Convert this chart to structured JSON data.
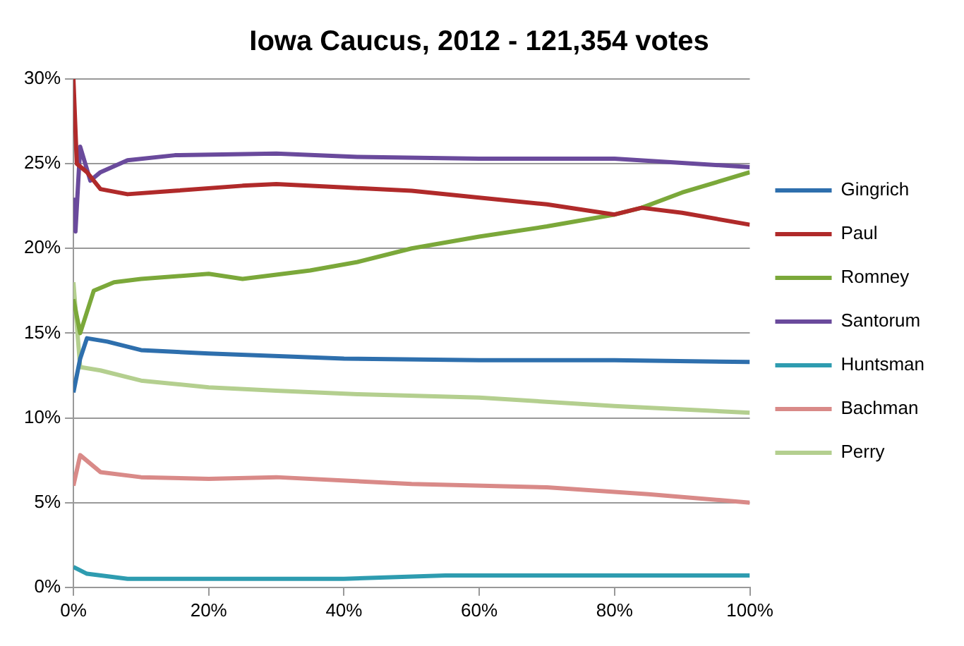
{
  "chart_data": {
    "type": "line",
    "title": "Iowa Caucus, 2012 - 121,354 votes",
    "xlim": [
      0,
      100
    ],
    "xticks": [
      {
        "value": 0,
        "label": "0%"
      },
      {
        "value": 20,
        "label": "20%"
      },
      {
        "value": 40,
        "label": "40%"
      },
      {
        "value": 60,
        "label": "60%"
      },
      {
        "value": 80,
        "label": "80%"
      },
      {
        "value": 100,
        "label": "100%"
      }
    ],
    "ylim": [
      0,
      30
    ],
    "yticks": [
      {
        "value": 0,
        "label": "0%"
      },
      {
        "value": 5,
        "label": "5%"
      },
      {
        "value": 10,
        "label": "10%"
      },
      {
        "value": 15,
        "label": "15%"
      },
      {
        "value": 20,
        "label": "20%"
      },
      {
        "value": 25,
        "label": "25%"
      },
      {
        "value": 30,
        "label": "30%"
      }
    ],
    "grid": "y",
    "legend": "right",
    "marker": "none",
    "series": [
      {
        "name": "Gingrich",
        "color": "#2e6fad",
        "x": [
          0,
          1,
          2,
          5,
          10,
          20,
          40,
          60,
          80,
          100
        ],
        "values": [
          11.5,
          13.5,
          14.7,
          14.5,
          14,
          13.8,
          13.5,
          13.4,
          13.4,
          13.3
        ]
      },
      {
        "name": "Paul",
        "color": "#b02a2a",
        "x": [
          0,
          0.5,
          2,
          4,
          8,
          15,
          25,
          30,
          40,
          50,
          60,
          70,
          80,
          84,
          90,
          100
        ],
        "values": [
          30,
          25,
          24.5,
          23.5,
          23.2,
          23.4,
          23.7,
          23.8,
          23.6,
          23.4,
          23,
          22.6,
          22,
          22.4,
          22.1,
          21.4
        ]
      },
      {
        "name": "Romney",
        "color": "#7ba83a",
        "x": [
          0,
          1,
          3,
          6,
          10,
          20,
          25,
          35,
          42,
          50,
          60,
          70,
          80,
          84,
          90,
          100
        ],
        "values": [
          17,
          15,
          17.5,
          18,
          18.2,
          18.5,
          18.2,
          18.7,
          19.2,
          20,
          20.7,
          21.3,
          22,
          22.4,
          23.3,
          24.5
        ]
      },
      {
        "name": "Santorum",
        "color": "#6a4a9c",
        "x": [
          0,
          0.3,
          1,
          2.5,
          4,
          8,
          15,
          30,
          42,
          60,
          80,
          100
        ],
        "values": [
          23,
          21,
          26,
          24,
          24.5,
          25.2,
          25.5,
          25.6,
          25.4,
          25.3,
          25.3,
          24.8
        ]
      },
      {
        "name": "Huntsman",
        "color": "#2e9cb0",
        "x": [
          0,
          2,
          8,
          40,
          55,
          100
        ],
        "values": [
          1.2,
          0.8,
          0.5,
          0.5,
          0.7,
          0.7
        ]
      },
      {
        "name": "Bachman",
        "color": "#d98a88",
        "x": [
          0,
          1,
          4,
          10,
          20,
          30,
          50,
          70,
          85,
          100
        ],
        "values": [
          6,
          7.8,
          6.8,
          6.5,
          6.4,
          6.5,
          6.1,
          5.9,
          5.5,
          5
        ]
      },
      {
        "name": "Perry",
        "color": "#b4cf8f",
        "x": [
          0,
          1,
          4,
          10,
          20,
          30,
          42,
          60,
          80,
          100
        ],
        "values": [
          18,
          13,
          12.8,
          12.2,
          11.8,
          11.6,
          11.4,
          11.2,
          10.7,
          10.3
        ]
      }
    ]
  }
}
